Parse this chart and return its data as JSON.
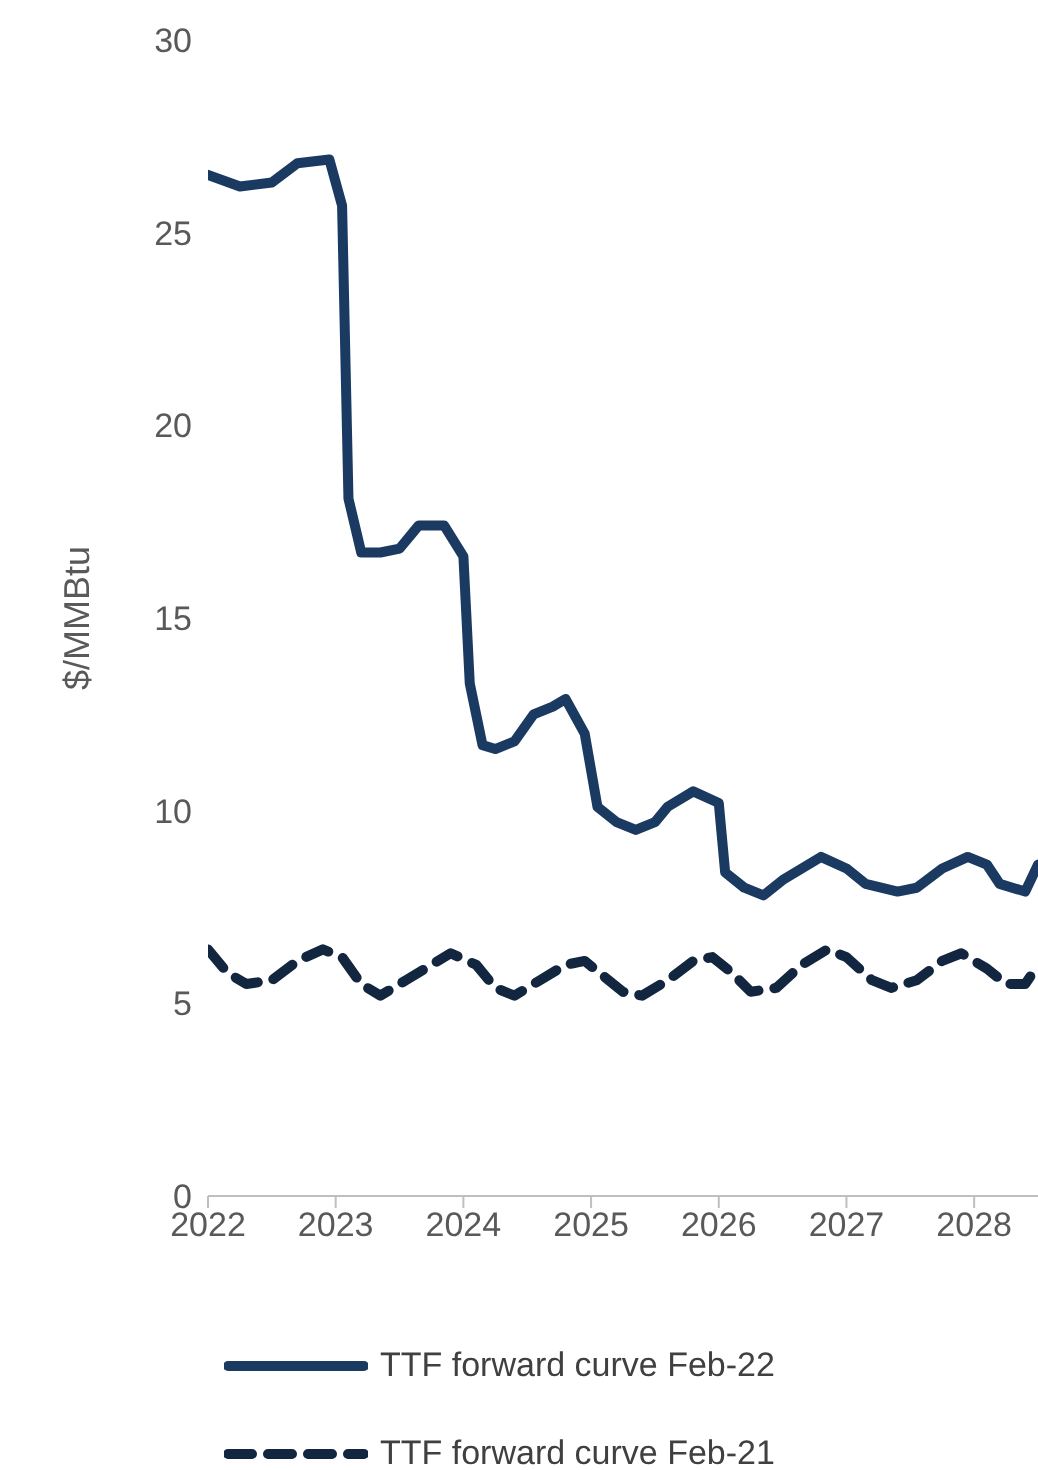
{
  "chart_data": {
    "type": "line",
    "ylabel": "$/MMBtu",
    "xlim": [
      2022,
      2028.5
    ],
    "xticks": [
      2022,
      2023,
      2024,
      2025,
      2026,
      2027,
      2028
    ],
    "ylim": [
      0,
      30
    ],
    "yticks": [
      0,
      5,
      10,
      15,
      20,
      25,
      30
    ],
    "grid": false,
    "legend": "bottom",
    "marker": "none",
    "series": [
      {
        "name": "TTF forward curve Feb-22",
        "color": "#1b3a62",
        "line_style": "solid",
        "x": [
          2022,
          2022.25,
          2022.5,
          2022.7,
          2022.95,
          2023.05,
          2023.1,
          2023.2,
          2023.35,
          2023.5,
          2023.65,
          2023.85,
          2024,
          2024.05,
          2024.15,
          2024.25,
          2024.4,
          2024.55,
          2024.7,
          2024.8,
          2024.95,
          2025.05,
          2025.2,
          2025.35,
          2025.5,
          2025.6,
          2025.8,
          2026,
          2026.05,
          2026.2,
          2026.35,
          2026.5,
          2026.8,
          2027,
          2027.15,
          2027.4,
          2027.55,
          2027.75,
          2027.95,
          2028.1,
          2028.2,
          2028.4,
          2028.5
        ],
        "values": [
          26.5,
          26.2,
          26.3,
          26.8,
          26.9,
          25.7,
          18.1,
          16.7,
          16.7,
          16.8,
          17.4,
          17.4,
          16.6,
          13.3,
          11.7,
          11.6,
          11.8,
          12.5,
          12.7,
          12.9,
          12,
          10.1,
          9.7,
          9.5,
          9.7,
          10.1,
          10.5,
          10.2,
          8.4,
          8,
          7.8,
          8.2,
          8.8,
          8.5,
          8.1,
          7.9,
          8,
          8.5,
          8.8,
          8.6,
          8.1,
          7.9,
          8.6
        ]
      },
      {
        "name": "TTF forward curve Feb-21",
        "color": "#12263f",
        "line_style": "dashed",
        "x": [
          2022,
          2022.15,
          2022.3,
          2022.5,
          2022.7,
          2022.9,
          2023.05,
          2023.2,
          2023.35,
          2023.55,
          2023.75,
          2023.9,
          2024.1,
          2024.25,
          2024.4,
          2024.6,
          2024.8,
          2024.95,
          2025.1,
          2025.25,
          2025.4,
          2025.6,
          2025.8,
          2025.95,
          2026.1,
          2026.25,
          2026.45,
          2026.65,
          2026.85,
          2027,
          2027.2,
          2027.35,
          2027.55,
          2027.75,
          2027.9,
          2028.1,
          2028.25,
          2028.4,
          2028.5
        ],
        "values": [
          6.4,
          5.8,
          5.5,
          5.6,
          6.1,
          6.4,
          6.2,
          5.5,
          5.2,
          5.6,
          6,
          6.3,
          6,
          5.4,
          5.2,
          5.6,
          6,
          6.1,
          5.7,
          5.3,
          5.2,
          5.6,
          6.1,
          6.2,
          5.8,
          5.3,
          5.4,
          6,
          6.4,
          6.2,
          5.6,
          5.4,
          5.6,
          6.1,
          6.3,
          5.9,
          5.5,
          5.5,
          6
        ]
      }
    ]
  }
}
